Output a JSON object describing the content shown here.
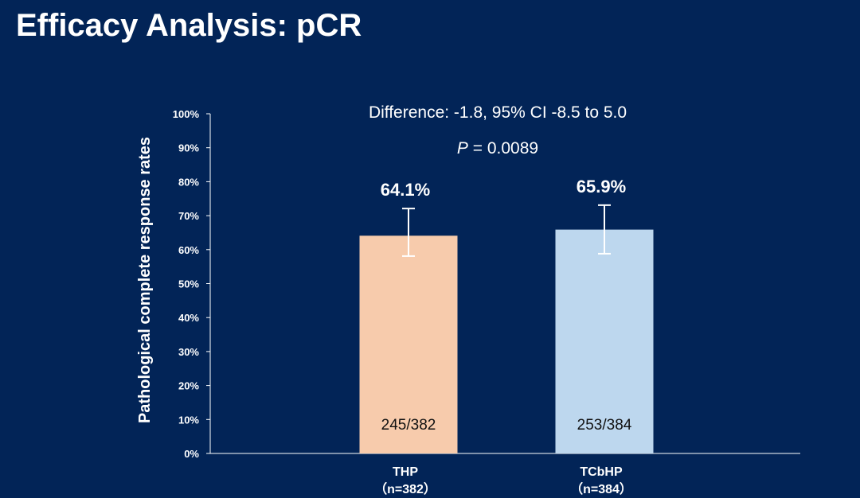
{
  "title": "Efficacy Analysis: pCR",
  "chart_data": {
    "type": "bar",
    "title": "",
    "ylabel": "Pathological complete response rates",
    "xlabel": "",
    "ylim": [
      0,
      100
    ],
    "yticks": [
      "0%",
      "10%",
      "20%",
      "30%",
      "40%",
      "50%",
      "60%",
      "70%",
      "80%",
      "90%",
      "100%"
    ],
    "categories": [
      "THP",
      "TCbHP"
    ],
    "category_sublabels": [
      "（n=382）",
      "（n=384）"
    ],
    "values": [
      64.1,
      65.9
    ],
    "value_labels": [
      "64.1%",
      "65.9%"
    ],
    "error_bars": [
      [
        58.1,
        72.1
      ],
      [
        58.8,
        73.1
      ]
    ],
    "counts": [
      "245/382",
      "253/384"
    ],
    "colors": [
      "#f7cbac",
      "#bdd7ee"
    ],
    "annotations": {
      "difference": "Difference: -1.8, 95% CI -8.5 to 5.0",
      "p_label": "P",
      "p_value": " = 0.0089"
    },
    "grid": false
  }
}
